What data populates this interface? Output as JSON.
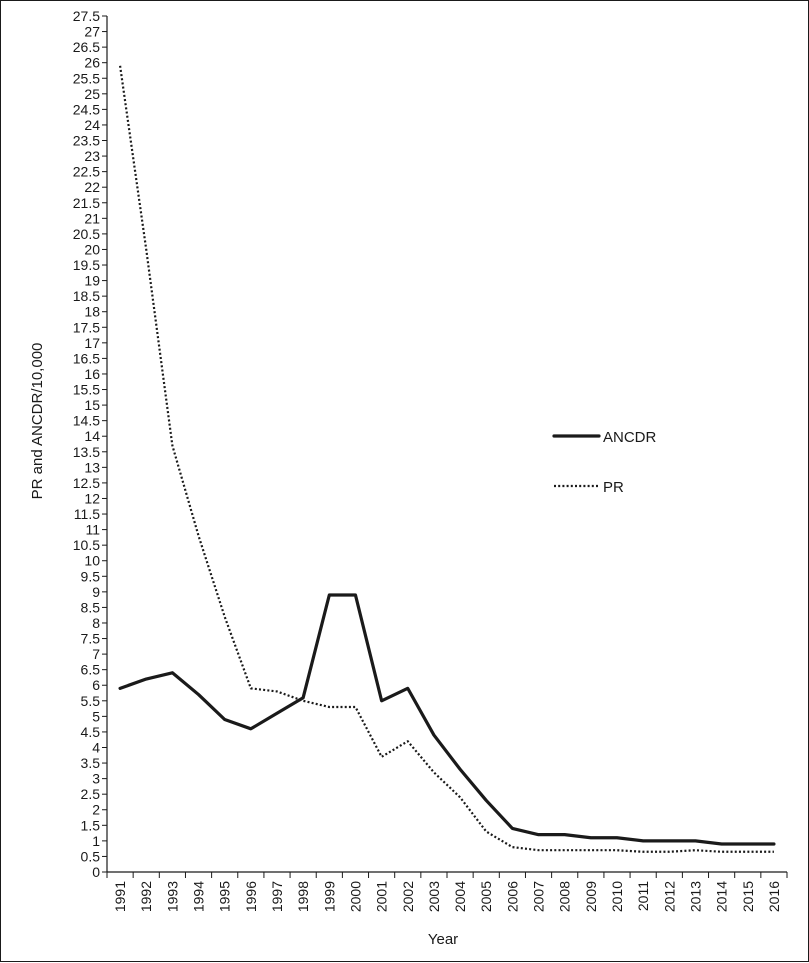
{
  "chart_data": {
    "type": "line",
    "title": "",
    "xlabel": "Year",
    "ylabel": "PR and ANCDR/10,000",
    "ylim": [
      0,
      27.5
    ],
    "y_tick_step": 0.5,
    "grid": false,
    "legend_position": "right",
    "categories": [
      "1991",
      "1992",
      "1993",
      "1994",
      "1995",
      "1996",
      "1997",
      "1998",
      "1999",
      "2000",
      "2001",
      "2002",
      "2003",
      "2004",
      "2005",
      "2006",
      "2007",
      "2008",
      "2009",
      "2010",
      "2011",
      "2012",
      "2013",
      "2014",
      "2015",
      "2016"
    ],
    "series": [
      {
        "name": "ANCDR",
        "style": "solid",
        "color": "#1a1a1a",
        "values": [
          5.9,
          6.2,
          6.4,
          5.7,
          4.9,
          4.6,
          5.1,
          5.6,
          8.9,
          8.9,
          5.5,
          5.9,
          4.4,
          3.3,
          2.3,
          1.4,
          1.2,
          1.2,
          1.1,
          1.1,
          1.0,
          1.0,
          1.0,
          0.9,
          0.9,
          0.9
        ]
      },
      {
        "name": "PR",
        "style": "dotted",
        "color": "#1a1a1a",
        "values": [
          25.9,
          20.0,
          13.7,
          10.8,
          8.2,
          5.9,
          5.8,
          5.5,
          5.3,
          5.3,
          3.7,
          4.2,
          3.2,
          2.4,
          1.3,
          0.8,
          0.7,
          0.7,
          0.7,
          0.7,
          0.65,
          0.65,
          0.7,
          0.65,
          0.65,
          0.65
        ]
      }
    ]
  }
}
